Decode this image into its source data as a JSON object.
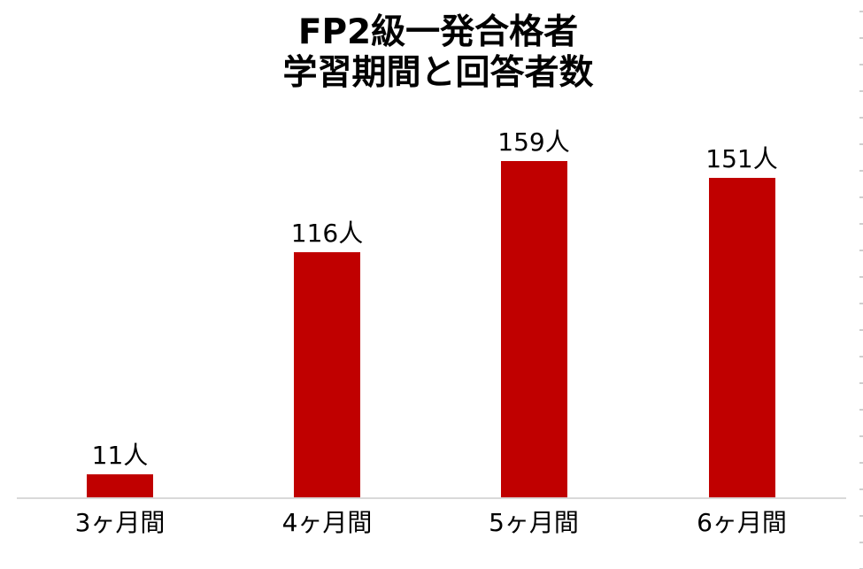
{
  "title": {
    "line1": "FP2級一発合格者",
    "line2": "学習期間と回答者数"
  },
  "chart_data": {
    "type": "bar",
    "title": "FP2級一発合格者 学習期間と回答者数",
    "categories": [
      "3ヶ月間",
      "4ヶ月間",
      "5ヶ月間",
      "6ヶ月間"
    ],
    "values": [
      11,
      116,
      159,
      151
    ],
    "data_labels": [
      "11人",
      "116人",
      "159人",
      "151人"
    ],
    "unit": "人",
    "xlabel": "",
    "ylabel": "",
    "ylim": [
      0,
      170
    ],
    "grid": false,
    "legend": "none",
    "bar_color": "#C00000",
    "axis_line_color": "#D9D9D9",
    "text_color": "#000000",
    "background_color": "#FFFFFF"
  }
}
